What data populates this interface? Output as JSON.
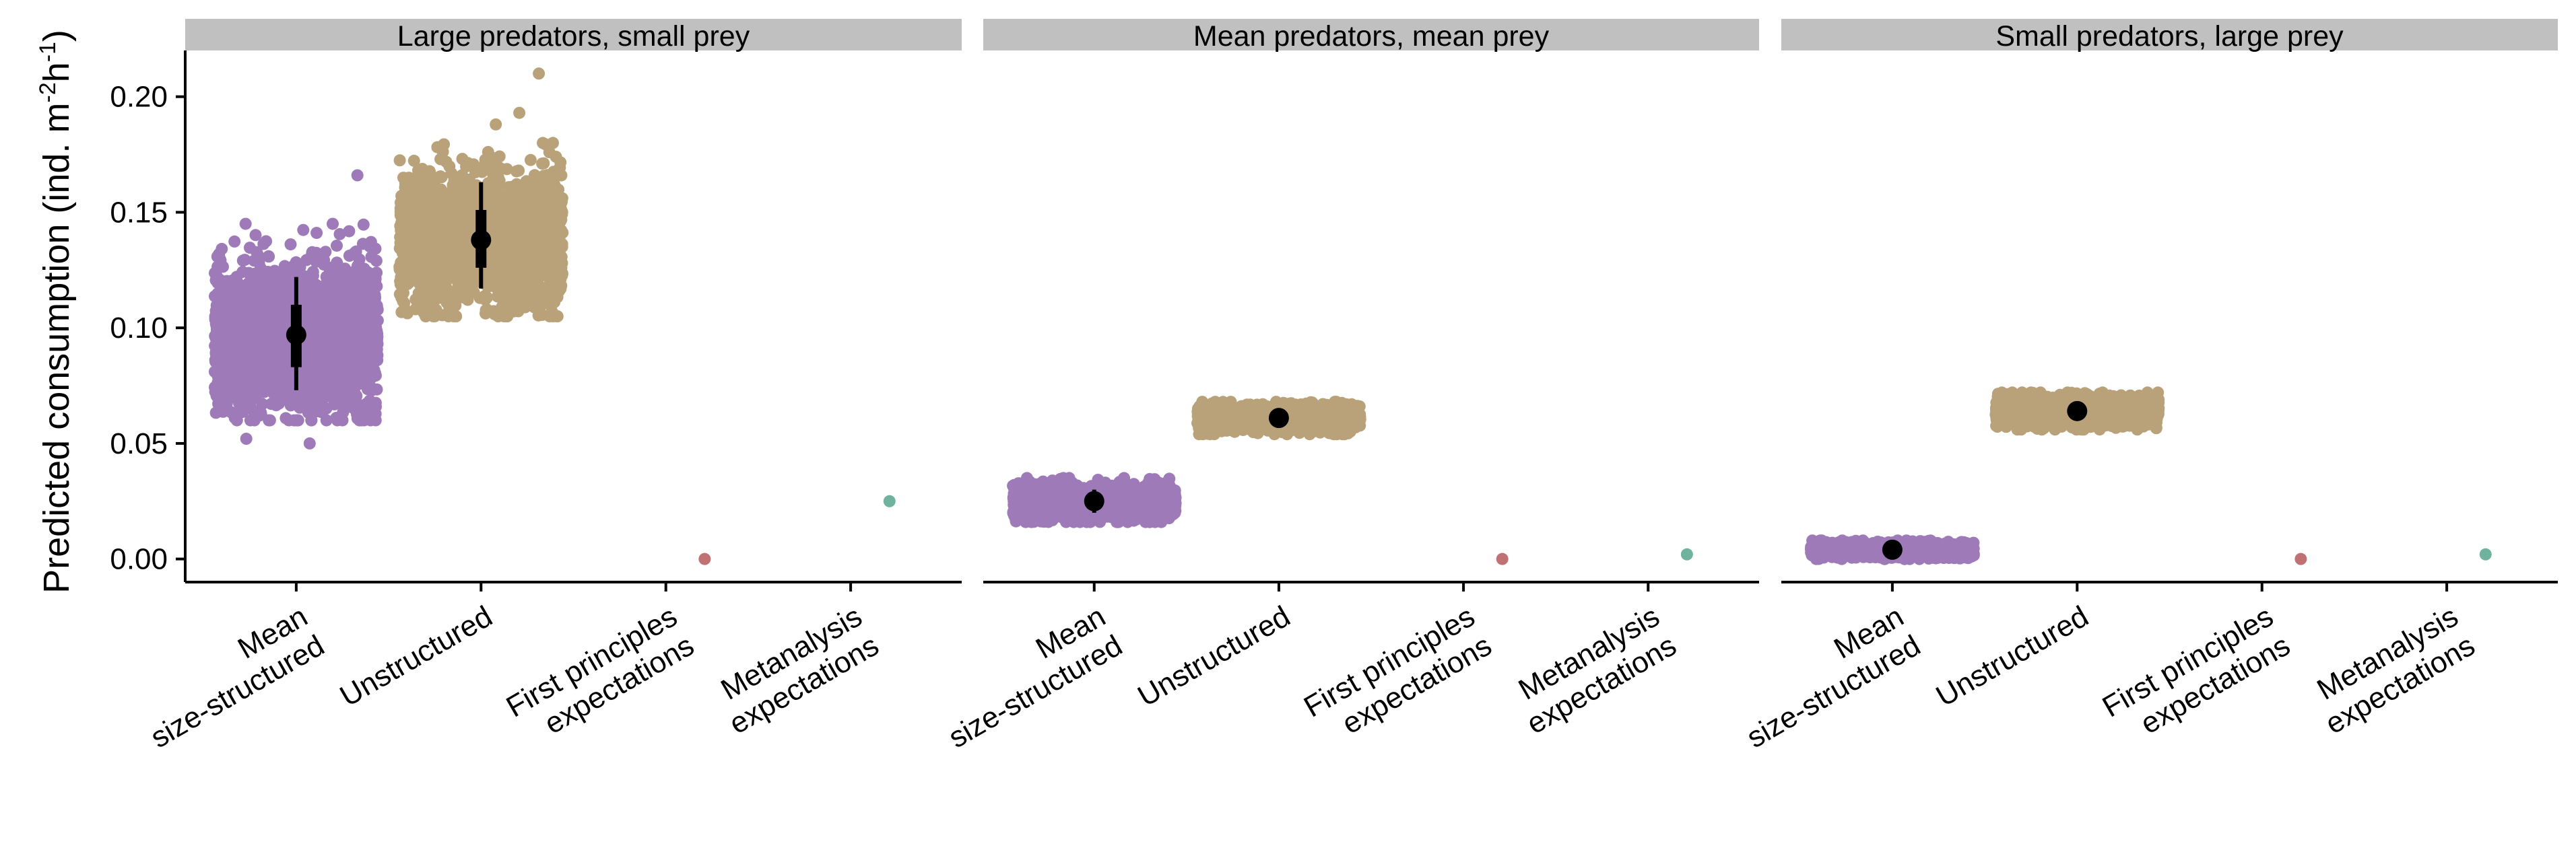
{
  "chart_data": {
    "type": "scatter",
    "y_axis": {
      "label_main": "Predicted consumption (ind. m",
      "label_sup1": "-2",
      "label_mid": "h",
      "label_sup2": "-1",
      "label_end": ")",
      "ylim": [
        -0.01,
        0.22
      ],
      "ticks": [
        0.0,
        0.05,
        0.1,
        0.15,
        0.2
      ],
      "tick_labels": [
        "0.00",
        "0.05",
        "0.10",
        "0.15",
        "0.20"
      ]
    },
    "categories": [
      [
        "Mean",
        "size-structured"
      ],
      [
        "Unstructured"
      ],
      [
        "First principles",
        "expectations"
      ],
      [
        "Metanalysis",
        "expectations"
      ]
    ],
    "colors": {
      "size_structured": "#9e7bb8",
      "unstructured": "#b9a27a",
      "first_principles": "#c07272",
      "metanalysis": "#6fb29e",
      "summary": "#000000",
      "strip": "#c0c0c0"
    },
    "facets": [
      {
        "title": "Large predators, small prey",
        "clouds": [
          {
            "category": 0,
            "color_key": "size_structured",
            "center": 0.097,
            "core_min": 0.06,
            "core_max": 0.145,
            "outliers": [
              0.166,
              0.05,
              0.052
            ]
          },
          {
            "category": 1,
            "color_key": "unstructured",
            "center": 0.138,
            "core_min": 0.105,
            "core_max": 0.18,
            "outliers": [
              0.21,
              0.193,
              0.188
            ]
          }
        ],
        "summaries": [
          {
            "category": 0,
            "mean": 0.097,
            "inner": [
              0.083,
              0.11
            ],
            "outer": [
              0.073,
              0.122
            ]
          },
          {
            "category": 1,
            "mean": 0.138,
            "inner": [
              0.126,
              0.151
            ],
            "outer": [
              0.117,
              0.163
            ]
          }
        ],
        "points": [
          {
            "category": 2,
            "color_key": "first_principles",
            "y": 0.0
          },
          {
            "category": 3,
            "color_key": "metanalysis",
            "y": 0.025
          }
        ]
      },
      {
        "title": "Mean predators, mean prey",
        "clouds": [
          {
            "category": 0,
            "color_key": "size_structured",
            "center": 0.025,
            "core_min": 0.016,
            "core_max": 0.035,
            "outliers": []
          },
          {
            "category": 1,
            "color_key": "unstructured",
            "center": 0.061,
            "core_min": 0.054,
            "core_max": 0.068,
            "outliers": []
          }
        ],
        "summaries": [
          {
            "category": 0,
            "mean": 0.025,
            "inner": [
              0.022,
              0.028
            ],
            "outer": [
              0.02,
              0.03
            ]
          },
          {
            "category": 1,
            "mean": 0.061,
            "inner": [
              0.059,
              0.063
            ],
            "outer": [
              0.058,
              0.064
            ]
          }
        ],
        "points": [
          {
            "category": 2,
            "color_key": "first_principles",
            "y": 0.0
          },
          {
            "category": 3,
            "color_key": "metanalysis",
            "y": 0.002
          }
        ]
      },
      {
        "title": "Small predators, large prey",
        "clouds": [
          {
            "category": 0,
            "color_key": "size_structured",
            "center": 0.004,
            "core_min": 0.0,
            "core_max": 0.008,
            "outliers": []
          },
          {
            "category": 1,
            "color_key": "unstructured",
            "center": 0.064,
            "core_min": 0.056,
            "core_max": 0.072,
            "outliers": []
          }
        ],
        "summaries": [
          {
            "category": 0,
            "mean": 0.004,
            "inner": [
              0.003,
              0.005
            ],
            "outer": [
              0.002,
              0.006
            ]
          },
          {
            "category": 1,
            "mean": 0.064,
            "inner": [
              0.062,
              0.066
            ],
            "outer": [
              0.061,
              0.067
            ]
          }
        ],
        "points": [
          {
            "category": 2,
            "color_key": "first_principles",
            "y": 0.0
          },
          {
            "category": 3,
            "color_key": "metanalysis",
            "y": 0.002
          }
        ]
      }
    ]
  }
}
